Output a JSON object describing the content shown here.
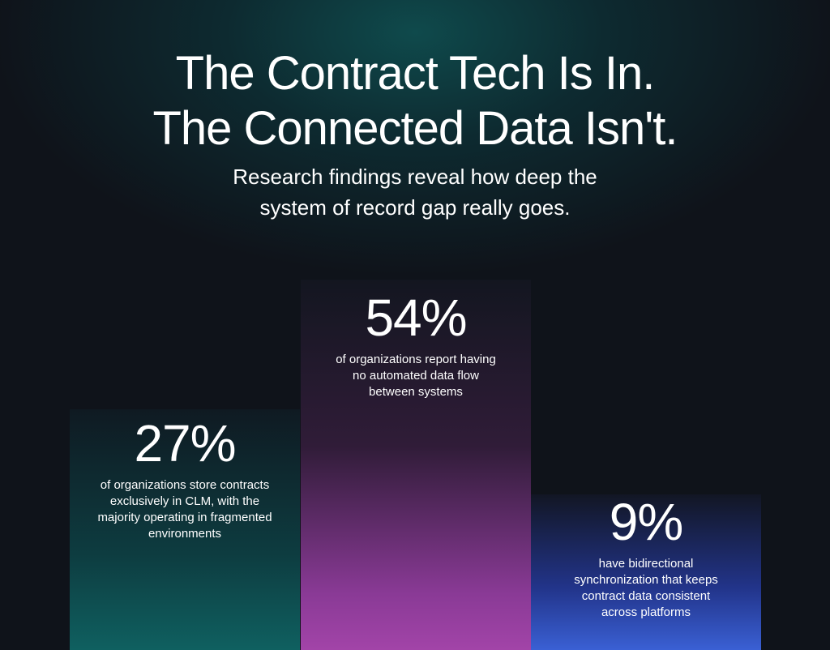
{
  "header": {
    "title": [
      "The Contract Tech Is In.",
      "The Connected Data Isn't."
    ],
    "subtitle": [
      "Research findings reveal how deep the",
      "system of record gap really goes."
    ]
  },
  "stats": [
    {
      "value": "27%",
      "description": [
        "of organizations store contracts",
        "exclusively in CLM, with the",
        "majority operating in fragmented",
        "environments"
      ]
    },
    {
      "value": "54%",
      "description": [
        "of organizations report having",
        "no automated data flow",
        "between systems"
      ]
    },
    {
      "value": "9%",
      "description": [
        "have bidirectional",
        "synchronization that keeps",
        "contract data consistent",
        "across platforms"
      ]
    }
  ]
}
